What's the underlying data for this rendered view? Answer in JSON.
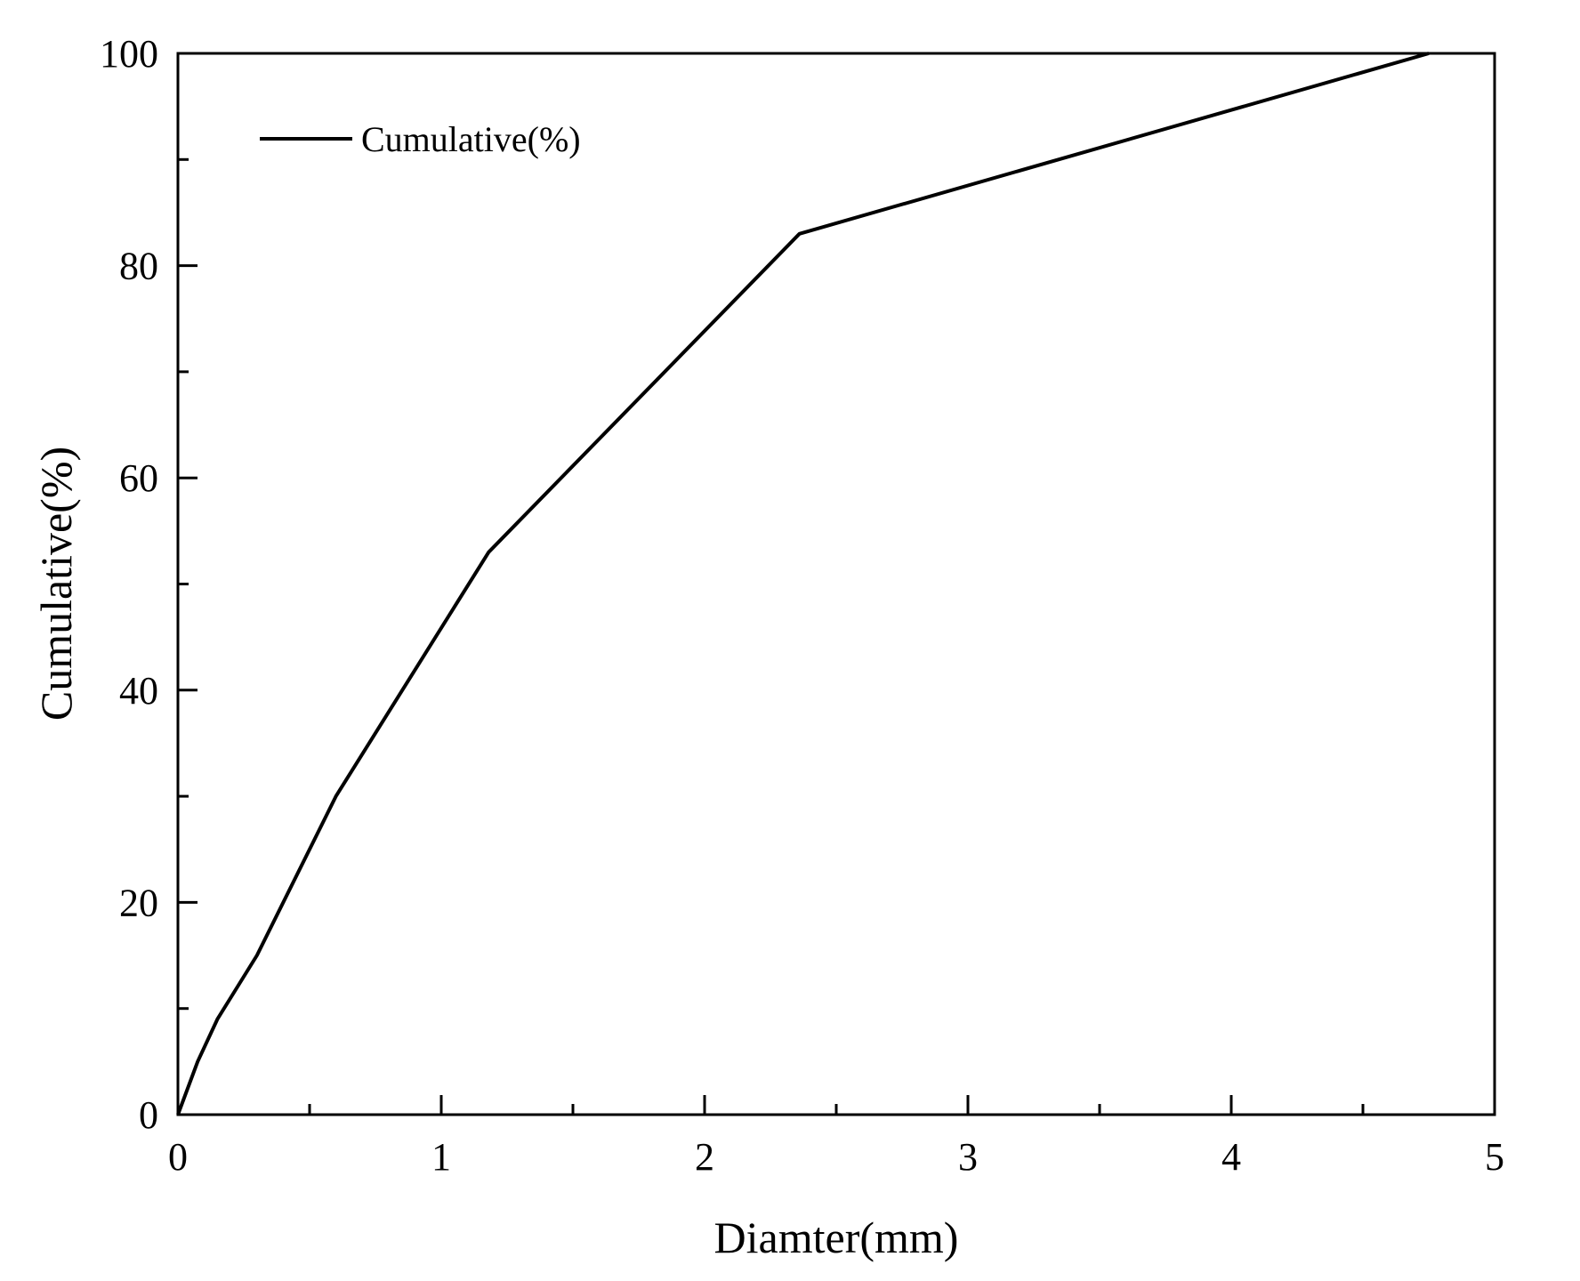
{
  "chart_data": {
    "type": "line",
    "xlabel": "Diamter(mm)",
    "ylabel": "Cumulative(%)",
    "xlim": [
      0,
      5
    ],
    "ylim": [
      0,
      100
    ],
    "x_ticks": [
      "0",
      "1",
      "2",
      "3",
      "4",
      "5"
    ],
    "y_ticks": [
      "0",
      "20",
      "40",
      "60",
      "80",
      "100"
    ],
    "grid": false,
    "legend_position": "top-left",
    "series": [
      {
        "name": "Cumulative(%)",
        "color": "#000000",
        "x": [
          0,
          0.075,
          0.15,
          0.3,
          0.6,
          1.18,
          2.36,
          4.75
        ],
        "y": [
          0,
          5,
          9,
          15,
          30,
          53,
          83,
          100
        ]
      }
    ]
  }
}
